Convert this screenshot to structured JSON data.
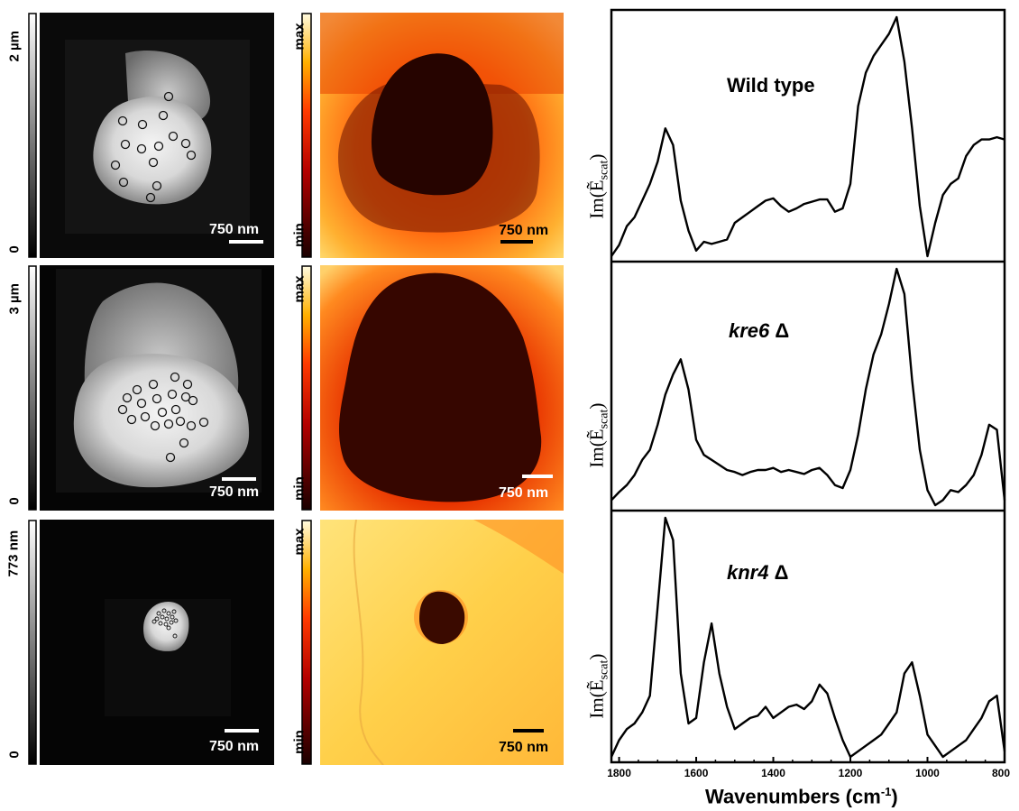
{
  "rows": [
    {
      "height_label": "2 µm",
      "height_zero": "0",
      "topo_scale": "750 nm",
      "nano_scale": "750 nm",
      "cbar_max": "max",
      "cbar_min": "min"
    },
    {
      "height_label": "3 µm",
      "height_zero": "0",
      "topo_scale": "750 nm",
      "nano_scale": "750 nm",
      "cbar_max": "max",
      "cbar_min": "min"
    },
    {
      "height_label": "773 nm",
      "height_zero": "0",
      "topo_scale": "750 nm",
      "nano_scale": "750 nm",
      "cbar_max": "max",
      "cbar_min": "min"
    }
  ],
  "chart_data": {
    "type": "line",
    "xlabel_main": "Wavenumbers (cm",
    "xlabel_sup": "-1",
    "xlabel_end": ")",
    "ylabel_main": "Im(Ẽ",
    "ylabel_sub": "scat",
    "ylabel_end": ")",
    "x_reversed": true,
    "xlim": [
      1820,
      800
    ],
    "xticks": [
      "1800",
      "1600",
      "1400",
      "1200",
      "1000",
      "800"
    ],
    "series": [
      {
        "name": "Wild type",
        "italic": false,
        "x": [
          1820,
          1800,
          1780,
          1760,
          1740,
          1720,
          1700,
          1680,
          1660,
          1640,
          1620,
          1600,
          1580,
          1560,
          1540,
          1520,
          1500,
          1480,
          1460,
          1440,
          1420,
          1400,
          1380,
          1360,
          1340,
          1320,
          1300,
          1280,
          1260,
          1240,
          1220,
          1200,
          1180,
          1160,
          1140,
          1120,
          1100,
          1080,
          1060,
          1040,
          1020,
          1000,
          980,
          960,
          940,
          920,
          900,
          880,
          860,
          840,
          820,
          800
        ],
        "y": [
          0.05,
          0.15,
          0.32,
          0.4,
          0.55,
          0.7,
          0.9,
          1.2,
          1.05,
          0.55,
          0.28,
          0.1,
          0.18,
          0.16,
          0.18,
          0.2,
          0.35,
          0.4,
          0.45,
          0.5,
          0.55,
          0.57,
          0.5,
          0.45,
          0.48,
          0.52,
          0.54,
          0.56,
          0.56,
          0.45,
          0.48,
          0.7,
          1.4,
          1.7,
          1.85,
          1.95,
          2.05,
          2.2,
          1.8,
          1.2,
          0.5,
          0.05,
          0.35,
          0.6,
          0.7,
          0.75,
          0.95,
          1.05,
          1.1,
          1.1,
          1.12,
          1.1
        ]
      },
      {
        "name": "kre6",
        "suffix": " Δ",
        "italic": true,
        "x": [
          1820,
          1800,
          1780,
          1760,
          1740,
          1720,
          1700,
          1680,
          1660,
          1640,
          1620,
          1600,
          1580,
          1560,
          1540,
          1520,
          1500,
          1480,
          1460,
          1440,
          1420,
          1400,
          1380,
          1360,
          1340,
          1320,
          1300,
          1280,
          1260,
          1240,
          1220,
          1200,
          1180,
          1160,
          1140,
          1120,
          1100,
          1080,
          1060,
          1040,
          1020,
          1000,
          980,
          960,
          940,
          920,
          900,
          880,
          860,
          840,
          820,
          800
        ],
        "y": [
          0.1,
          0.18,
          0.25,
          0.35,
          0.5,
          0.6,
          0.85,
          1.15,
          1.35,
          1.5,
          1.2,
          0.7,
          0.55,
          0.5,
          0.45,
          0.4,
          0.38,
          0.35,
          0.38,
          0.4,
          0.4,
          0.42,
          0.38,
          0.4,
          0.38,
          0.36,
          0.4,
          0.42,
          0.35,
          0.25,
          0.22,
          0.4,
          0.75,
          1.2,
          1.55,
          1.75,
          2.05,
          2.4,
          2.15,
          1.3,
          0.6,
          0.2,
          0.05,
          0.1,
          0.2,
          0.18,
          0.25,
          0.35,
          0.55,
          0.85,
          0.8,
          0.1
        ]
      },
      {
        "name": "knr4",
        "suffix": " Δ",
        "italic": true,
        "x": [
          1820,
          1800,
          1780,
          1760,
          1740,
          1720,
          1700,
          1680,
          1660,
          1640,
          1620,
          1600,
          1580,
          1560,
          1540,
          1520,
          1500,
          1480,
          1460,
          1440,
          1420,
          1400,
          1380,
          1360,
          1340,
          1320,
          1300,
          1280,
          1260,
          1240,
          1220,
          1200,
          1180,
          1160,
          1140,
          1120,
          1100,
          1080,
          1060,
          1040,
          1020,
          1000,
          980,
          960,
          940,
          920,
          900,
          880,
          860,
          840,
          820,
          800
        ],
        "y": [
          0.05,
          0.2,
          0.3,
          0.35,
          0.45,
          0.6,
          1.4,
          2.2,
          2.0,
          0.8,
          0.35,
          0.4,
          0.9,
          1.25,
          0.8,
          0.5,
          0.3,
          0.35,
          0.4,
          0.42,
          0.5,
          0.4,
          0.45,
          0.5,
          0.52,
          0.48,
          0.55,
          0.7,
          0.62,
          0.4,
          0.2,
          0.05,
          0.1,
          0.15,
          0.2,
          0.25,
          0.35,
          0.45,
          0.8,
          0.9,
          0.6,
          0.25,
          0.15,
          0.05,
          0.1,
          0.15,
          0.2,
          0.3,
          0.4,
          0.55,
          0.6,
          0.1
        ]
      }
    ]
  },
  "colors": {
    "spectrum_line": "#000000",
    "frame": "#000000",
    "scalebar_topo": "#ffffff",
    "scalebar_nano_dark": "#000000",
    "scalebar_nano_light": "#ffffff"
  }
}
